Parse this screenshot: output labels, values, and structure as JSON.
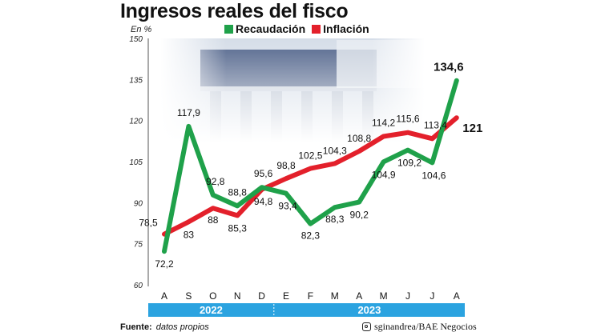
{
  "title": "Ingresos reales del fisco",
  "unit_label": "En %",
  "legend": [
    {
      "name": "Recaudación",
      "color": "#1fa14a"
    },
    {
      "name": "Inflación",
      "color": "#e3202b"
    }
  ],
  "footer": {
    "source_label": "Fuente:",
    "source_value": "datos propios",
    "credit": "sginandrea/BAE Negocios"
  },
  "colors": {
    "recaudacion": "#1fa14a",
    "inflacion": "#e3202b",
    "year_band": "#2ba3e0",
    "photo_tint": "#c9d6e6"
  },
  "icons": [
    "instagram-icon"
  ],
  "chart_data": {
    "type": "line",
    "title": "Ingresos reales del fisco",
    "ylabel": "En %",
    "xlabel": "",
    "categories": [
      "A",
      "S",
      "O",
      "N",
      "D",
      "E",
      "F",
      "M",
      "A",
      "M",
      "J",
      "J",
      "A"
    ],
    "year_groups": [
      {
        "label": "2022",
        "from": 0,
        "to": 4
      },
      {
        "label": "2023",
        "from": 5,
        "to": 12
      }
    ],
    "yticks": [
      60,
      75,
      90,
      105,
      120,
      135,
      150
    ],
    "ylim": [
      60,
      150
    ],
    "grid": false,
    "legend_position": "top",
    "series": [
      {
        "name": "Recaudación",
        "color": "#1fa14a",
        "values": [
          72.2,
          117.9,
          92.8,
          88.8,
          95.6,
          93.4,
          82.3,
          88.3,
          90.2,
          104.9,
          109.2,
          104.6,
          134.6
        ],
        "labels": [
          "72,2",
          "117,9",
          "92,8",
          "88,8",
          "95,6",
          "93,4",
          "82,3",
          "88,3",
          "90,2",
          "104,9",
          "109,2",
          "104,6",
          "134,6"
        ]
      },
      {
        "name": "Inflación",
        "color": "#e3202b",
        "values": [
          78.5,
          83,
          88,
          85.3,
          94.8,
          98.8,
          102.5,
          104.3,
          108.8,
          114.2,
          115.6,
          113.4,
          121
        ],
        "labels": [
          "78,5",
          "83",
          "88",
          "85,3",
          "94,8",
          "98,8",
          "102,5",
          "104,3",
          "108,8",
          "114,2",
          "115,6",
          "113,4",
          "121"
        ]
      }
    ]
  }
}
